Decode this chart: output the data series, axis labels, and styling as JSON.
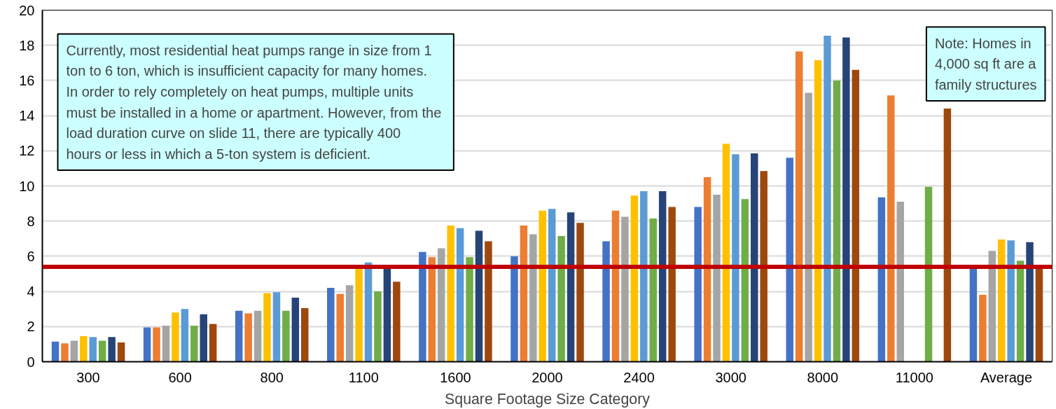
{
  "chart_data": {
    "type": "bar",
    "xlabel": "Square Footage Size Category",
    "categories": [
      "300",
      "600",
      "800",
      "1100",
      "1600",
      "2000",
      "2400",
      "3000",
      "8000",
      "11000",
      "Average"
    ],
    "series": [
      {
        "color": "#4472c4",
        "values": [
          1.15,
          1.95,
          2.9,
          4.2,
          6.25,
          6.0,
          6.85,
          8.8,
          11.6,
          9.35,
          5.3
        ]
      },
      {
        "color": "#ed7d31",
        "values": [
          1.05,
          1.95,
          2.75,
          3.85,
          5.95,
          7.75,
          8.6,
          10.5,
          17.65,
          15.15,
          3.8
        ]
      },
      {
        "color": "#a5a5a5",
        "values": [
          1.2,
          2.05,
          2.9,
          4.35,
          6.45,
          7.25,
          8.25,
          9.5,
          15.3,
          9.1,
          6.3
        ]
      },
      {
        "color": "#ffc000",
        "values": [
          1.45,
          2.8,
          3.9,
          5.3,
          7.75,
          8.6,
          9.45,
          12.4,
          17.15,
          null,
          6.95
        ]
      },
      {
        "color": "#5b9bd5",
        "values": [
          1.4,
          3.0,
          3.95,
          5.65,
          7.6,
          8.7,
          9.7,
          11.8,
          18.55,
          null,
          6.9
        ]
      },
      {
        "color": "#70ad47",
        "values": [
          1.2,
          2.05,
          2.9,
          4.0,
          5.95,
          7.15,
          8.15,
          9.25,
          16.0,
          9.95,
          5.75
        ]
      },
      {
        "color": "#264478",
        "values": [
          1.4,
          2.7,
          3.65,
          5.3,
          7.45,
          8.5,
          9.7,
          11.85,
          18.45,
          null,
          6.8
        ]
      },
      {
        "color": "#9e480e",
        "values": [
          1.1,
          2.15,
          3.05,
          4.55,
          6.85,
          7.9,
          8.8,
          10.85,
          16.6,
          14.4,
          5.3
        ]
      }
    ],
    "ylim": [
      0,
      20
    ],
    "yticks": [
      0,
      2,
      4,
      6,
      8,
      10,
      12,
      14,
      16,
      18,
      20
    ],
    "grid": "y",
    "ref_lines": [
      {
        "axis": "y",
        "value": 5.4,
        "color": "#c00000"
      }
    ],
    "annotations": [
      "Currently, most residential heat pumps range in size from 1 ton to 6 ton, which is insufficient capacity for many homes. In order to rely completely on heat pumps, multiple units must be installed in a home or apartment.  However, from the load duration curve on slide 11, there are typically 400 hours or less in which a 5-ton system is deficient.",
      "Note: Homes in 4,000 sq ft are a family structures"
    ]
  }
}
